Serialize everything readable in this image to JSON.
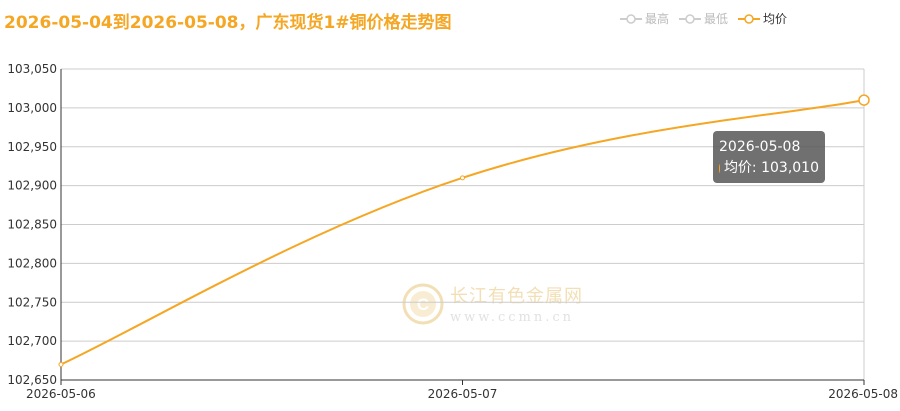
{
  "title": "2026-05-04到2026-05-08，广东现货1#铜价格走势图",
  "legend": [
    {
      "name": "最高",
      "active": false
    },
    {
      "name": "最低",
      "active": false
    },
    {
      "name": "均价",
      "active": true
    }
  ],
  "tooltip": {
    "date": "2026-05-08",
    "label": "均价: 103,010"
  },
  "watermark": {
    "name": "长江有色金属网",
    "url": "www.ccmn.cn"
  },
  "colors": {
    "line": "#f5a623",
    "inactive": "#cccccc",
    "grid": "#cccccc"
  },
  "chart_data": {
    "type": "line",
    "categories": [
      "2026-05-06",
      "2026-05-07",
      "2026-05-08"
    ],
    "series": [
      {
        "name": "均价",
        "values": [
          102670,
          102910,
          103010
        ]
      }
    ],
    "y_ticks": [
      102650,
      102700,
      102750,
      102800,
      102850,
      102900,
      102950,
      103000,
      103050
    ],
    "y_tick_labels": [
      "102,650",
      "102,700",
      "102,750",
      "102,800",
      "102,850",
      "102,900",
      "102,950",
      "103,000",
      "103,050"
    ],
    "ylim": [
      102650,
      103050
    ],
    "grid": true,
    "legend_position": "top-right"
  }
}
